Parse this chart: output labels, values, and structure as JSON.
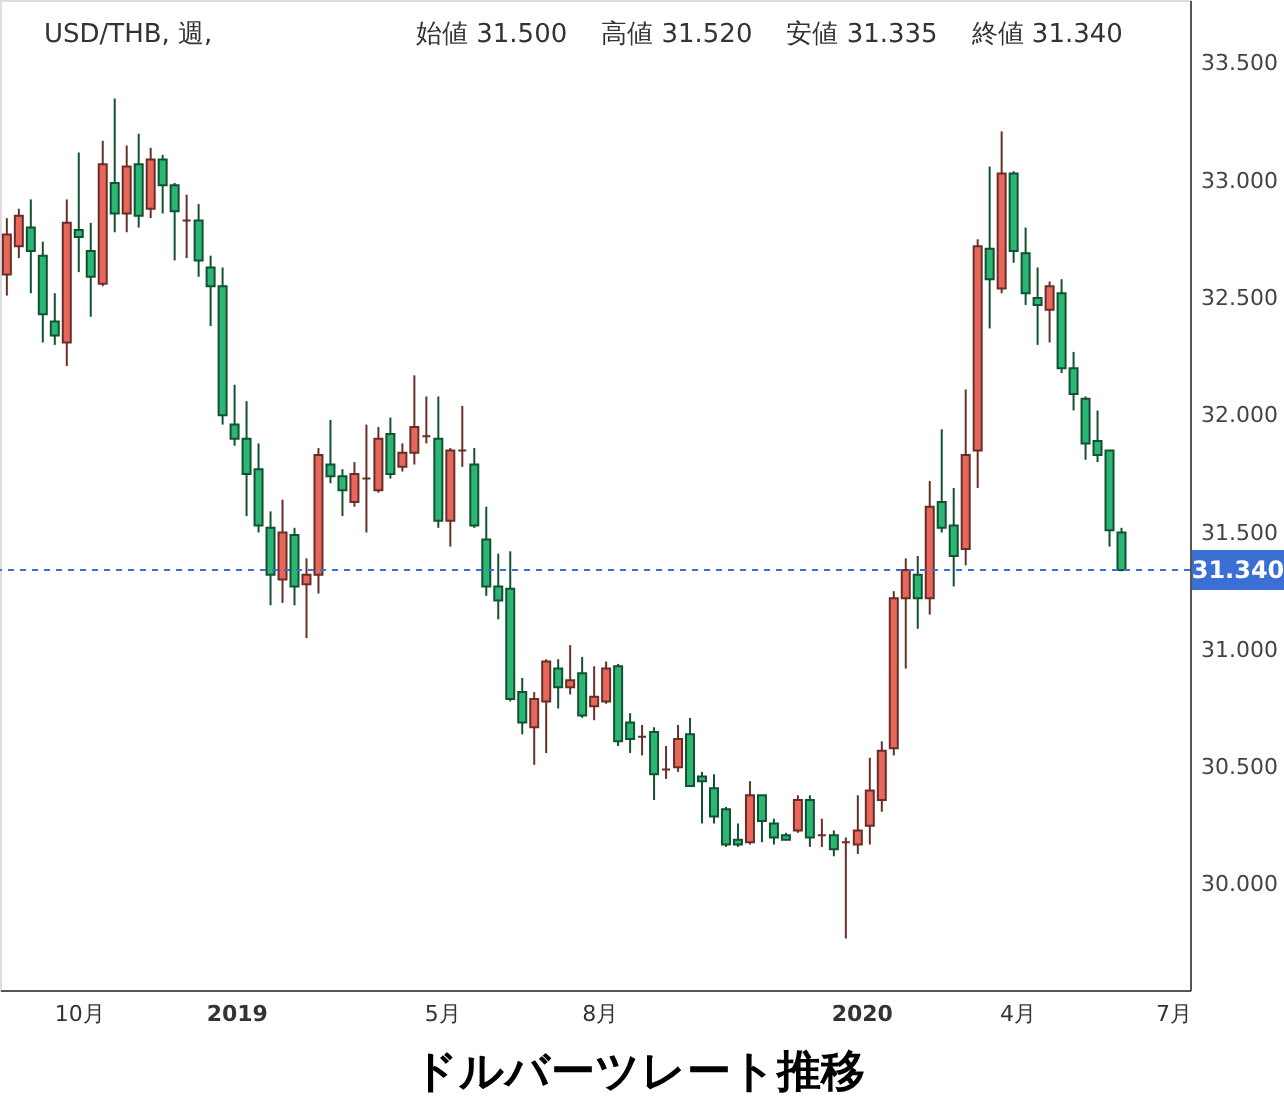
{
  "chart_data": {
    "type": "candlestick",
    "title": "ドルバーツレート推移",
    "annotations": [
      "USD/THB, 週,",
      "始値 31.500",
      "高値 31.520",
      "安値 31.335",
      "終値 31.340"
    ],
    "x": [
      "2018-08-20",
      "2018-08-27",
      "2018-09-03",
      "2018-09-10",
      "2018-09-17",
      "2018-09-24",
      "2018-10-01",
      "2018-10-08",
      "2018-10-15",
      "2018-10-22",
      "2018-10-29",
      "2018-11-05",
      "2018-11-12",
      "2018-11-19",
      "2018-11-26",
      "2018-12-03",
      "2018-12-10",
      "2018-12-17",
      "2018-12-24",
      "2018-12-31",
      "2019-01-07",
      "2019-01-14",
      "2019-01-21",
      "2019-01-28",
      "2019-02-04",
      "2019-02-11",
      "2019-02-18",
      "2019-02-25",
      "2019-03-04",
      "2019-03-11",
      "2019-03-18",
      "2019-03-25",
      "2019-04-01",
      "2019-04-08",
      "2019-04-15",
      "2019-04-22",
      "2019-04-29",
      "2019-05-06",
      "2019-05-13",
      "2019-05-20",
      "2019-05-27",
      "2019-06-03",
      "2019-06-10",
      "2019-06-17",
      "2019-06-24",
      "2019-07-01",
      "2019-07-08",
      "2019-07-15",
      "2019-07-22",
      "2019-07-29",
      "2019-08-05",
      "2019-08-12",
      "2019-08-19",
      "2019-08-26",
      "2019-09-02",
      "2019-09-09",
      "2019-09-16",
      "2019-09-23",
      "2019-09-30",
      "2019-10-07",
      "2019-10-14",
      "2019-10-21",
      "2019-10-28",
      "2019-11-04",
      "2019-11-11",
      "2019-11-18",
      "2019-11-25",
      "2019-12-02",
      "2019-12-09",
      "2019-12-16",
      "2019-12-23",
      "2019-12-30",
      "2020-01-06",
      "2020-01-13",
      "2020-01-20",
      "2020-01-27",
      "2020-02-03",
      "2020-02-10",
      "2020-02-17",
      "2020-02-24",
      "2020-03-02",
      "2020-03-09",
      "2020-03-16",
      "2020-03-23",
      "2020-03-30",
      "2020-04-06",
      "2020-04-13",
      "2020-04-20",
      "2020-04-27",
      "2020-05-04",
      "2020-05-11",
      "2020-05-18",
      "2020-05-25",
      "2020-06-01"
    ],
    "ohlc": [
      [
        32.6,
        32.84,
        32.51,
        32.77
      ],
      [
        32.72,
        32.88,
        32.67,
        32.85
      ],
      [
        32.8,
        32.92,
        32.52,
        32.7
      ],
      [
        32.68,
        32.74,
        32.31,
        32.43
      ],
      [
        32.4,
        32.52,
        32.3,
        32.34
      ],
      [
        32.31,
        32.92,
        32.21,
        32.82
      ],
      [
        32.79,
        33.12,
        32.61,
        32.76
      ],
      [
        32.7,
        32.82,
        32.42,
        32.59
      ],
      [
        32.56,
        33.17,
        32.55,
        33.07
      ],
      [
        32.99,
        33.35,
        32.78,
        32.86
      ],
      [
        32.86,
        33.15,
        32.78,
        33.06
      ],
      [
        33.07,
        33.2,
        32.8,
        32.85
      ],
      [
        32.88,
        33.14,
        32.84,
        33.09
      ],
      [
        33.09,
        33.11,
        32.86,
        32.98
      ],
      [
        32.98,
        32.99,
        32.66,
        32.87
      ],
      [
        32.83,
        32.94,
        32.67,
        32.83
      ],
      [
        32.83,
        32.9,
        32.59,
        32.66
      ],
      [
        32.63,
        32.68,
        32.38,
        32.55
      ],
      [
        32.55,
        32.63,
        31.96,
        32.0
      ],
      [
        31.96,
        32.13,
        31.87,
        31.9
      ],
      [
        31.9,
        32.06,
        31.57,
        31.75
      ],
      [
        31.77,
        31.88,
        31.5,
        31.53
      ],
      [
        31.52,
        31.59,
        31.19,
        31.32
      ],
      [
        31.3,
        31.64,
        31.2,
        31.5
      ],
      [
        31.49,
        31.52,
        31.19,
        31.27
      ],
      [
        31.28,
        31.39,
        31.05,
        31.32
      ],
      [
        31.32,
        31.86,
        31.24,
        31.83
      ],
      [
        31.79,
        31.98,
        31.71,
        31.74
      ],
      [
        31.74,
        31.77,
        31.57,
        31.68
      ],
      [
        31.63,
        31.8,
        31.61,
        31.75
      ],
      [
        31.73,
        31.96,
        31.5,
        31.73
      ],
      [
        31.68,
        31.95,
        31.67,
        31.9
      ],
      [
        31.92,
        31.99,
        31.73,
        31.75
      ],
      [
        31.78,
        31.88,
        31.76,
        31.84
      ],
      [
        31.84,
        32.17,
        31.79,
        31.95
      ],
      [
        31.91,
        32.08,
        31.88,
        31.91
      ],
      [
        31.9,
        32.08,
        31.52,
        31.55
      ],
      [
        31.55,
        31.86,
        31.44,
        31.85
      ],
      [
        31.85,
        32.04,
        31.78,
        31.85
      ],
      [
        31.79,
        31.86,
        31.52,
        31.53
      ],
      [
        31.47,
        31.61,
        31.23,
        31.27
      ],
      [
        31.27,
        31.41,
        31.13,
        31.21
      ],
      [
        31.26,
        31.42,
        30.78,
        30.79
      ],
      [
        30.82,
        30.88,
        30.64,
        30.69
      ],
      [
        30.67,
        30.82,
        30.51,
        30.79
      ],
      [
        30.78,
        30.96,
        30.56,
        30.95
      ],
      [
        30.92,
        30.96,
        30.75,
        30.84
      ],
      [
        30.84,
        31.02,
        30.81,
        30.87
      ],
      [
        30.9,
        30.97,
        30.71,
        30.72
      ],
      [
        30.76,
        30.93,
        30.7,
        30.8
      ],
      [
        30.78,
        30.95,
        30.77,
        30.92
      ],
      [
        30.93,
        30.94,
        30.59,
        30.61
      ],
      [
        30.69,
        30.73,
        30.56,
        30.62
      ],
      [
        30.63,
        30.68,
        30.55,
        30.63
      ],
      [
        30.65,
        30.67,
        30.36,
        30.47
      ],
      [
        30.49,
        30.59,
        30.45,
        30.49
      ],
      [
        30.5,
        30.68,
        30.48,
        30.62
      ],
      [
        30.64,
        30.71,
        30.42,
        30.42
      ],
      [
        30.46,
        30.48,
        30.26,
        30.44
      ],
      [
        30.41,
        30.47,
        30.26,
        30.29
      ],
      [
        30.32,
        30.33,
        30.16,
        30.17
      ],
      [
        30.19,
        30.26,
        30.16,
        30.17
      ],
      [
        30.18,
        30.44,
        30.17,
        30.38
      ],
      [
        30.38,
        30.38,
        30.18,
        30.27
      ],
      [
        30.26,
        30.28,
        30.17,
        30.2
      ],
      [
        30.21,
        30.22,
        30.19,
        30.19
      ],
      [
        30.23,
        30.38,
        30.22,
        30.36
      ],
      [
        30.36,
        30.38,
        30.16,
        30.2
      ],
      [
        30.21,
        30.28,
        30.16,
        30.21
      ],
      [
        30.21,
        30.23,
        30.12,
        30.15
      ],
      [
        30.18,
        30.2,
        29.77,
        30.18
      ],
      [
        30.17,
        30.38,
        30.13,
        30.23
      ],
      [
        30.25,
        30.54,
        30.17,
        30.4
      ],
      [
        30.36,
        30.61,
        30.31,
        30.57
      ],
      [
        30.58,
        31.25,
        30.55,
        31.22
      ],
      [
        31.22,
        31.39,
        30.92,
        31.34
      ],
      [
        31.32,
        31.4,
        31.09,
        31.22
      ],
      [
        31.22,
        31.72,
        31.15,
        31.61
      ],
      [
        31.63,
        31.94,
        31.5,
        31.52
      ],
      [
        31.53,
        31.69,
        31.27,
        31.4
      ],
      [
        31.43,
        32.11,
        31.36,
        31.83
      ],
      [
        31.85,
        32.75,
        31.69,
        32.72
      ],
      [
        32.71,
        33.06,
        32.37,
        32.58
      ],
      [
        32.54,
        33.21,
        32.52,
        33.03
      ],
      [
        33.03,
        33.04,
        32.65,
        32.7
      ],
      [
        32.69,
        32.8,
        32.47,
        32.52
      ],
      [
        32.5,
        32.63,
        32.3,
        32.47
      ],
      [
        32.45,
        32.57,
        32.31,
        32.55
      ],
      [
        32.52,
        32.58,
        32.18,
        32.2
      ],
      [
        32.2,
        32.27,
        32.02,
        32.09
      ],
      [
        32.07,
        32.08,
        31.81,
        31.88
      ],
      [
        31.89,
        32.02,
        31.8,
        31.83
      ],
      [
        31.85,
        31.85,
        31.44,
        31.51
      ],
      [
        31.5,
        31.52,
        31.335,
        31.34
      ]
    ],
    "colors": [
      "#e8675a",
      "#e8675a",
      "#2bb673",
      "#2bb673",
      "#2bb673",
      "#e8675a",
      "#2bb673",
      "#2bb673",
      "#e8675a",
      "#2bb673",
      "#e8675a",
      "#2bb673",
      "#e8675a",
      "#2bb673",
      "#2bb673",
      "#682e28",
      "#2bb673",
      "#2bb673",
      "#2bb673",
      "#2bb673",
      "#2bb673",
      "#2bb673",
      "#2bb673",
      "#e8675a",
      "#2bb673",
      "#e8675a",
      "#e8675a",
      "#2bb673",
      "#2bb673",
      "#e8675a",
      "#682e28",
      "#e8675a",
      "#2bb673",
      "#e8675a",
      "#e8675a",
      "#682e28",
      "#2bb673",
      "#e8675a",
      "#682e28",
      "#2bb673",
      "#2bb673",
      "#2bb673",
      "#2bb673",
      "#2bb673",
      "#e8675a",
      "#e8675a",
      "#2bb673",
      "#e8675a",
      "#2bb673",
      "#e8675a",
      "#e8675a",
      "#2bb673",
      "#2bb673",
      "#682e28",
      "#2bb673",
      "#682e28",
      "#e8675a",
      "#2bb673",
      "#2bb673",
      "#2bb673",
      "#2bb673",
      "#2bb673",
      "#e8675a",
      "#2bb673",
      "#2bb673",
      "#2bb673",
      "#e8675a",
      "#2bb673",
      "#682e28",
      "#2bb673",
      "#682e28",
      "#e8675a",
      "#e8675a",
      "#e8675a",
      "#e8675a",
      "#e8675a",
      "#2bb673",
      "#e8675a",
      "#2bb673",
      "#2bb673",
      "#e8675a",
      "#e8675a",
      "#2bb673",
      "#e8675a",
      "#2bb673",
      "#2bb673",
      "#2bb673",
      "#e8675a",
      "#2bb673",
      "#2bb673",
      "#2bb673",
      "#2bb673",
      "#2bb673",
      "#2bb673"
    ],
    "xlim": [
      "2018-08-16",
      "2020-07-11"
    ],
    "xticks": [
      {
        "value": "2018-10-01",
        "label": "10月"
      },
      {
        "value": "2019-01-01",
        "label": "2019"
      },
      {
        "value": "2019-05-01",
        "label": "5月"
      },
      {
        "value": "2019-08-01",
        "label": "8月"
      },
      {
        "value": "2020-01-01",
        "label": "2020"
      },
      {
        "value": "2020-04-01",
        "label": "4月"
      },
      {
        "value": "2020-07-01",
        "label": "7月"
      }
    ],
    "ylim": [
      29.55,
      33.77
    ],
    "yticks": [
      {
        "value": 30,
        "label": "30.000"
      },
      {
        "value": 30.5,
        "label": "30.500"
      },
      {
        "value": 31,
        "label": "31.000"
      },
      {
        "value": 31.5,
        "label": "31.500"
      },
      {
        "value": 32,
        "label": "32.000"
      },
      {
        "value": 32.5,
        "label": "32.500"
      },
      {
        "value": 33,
        "label": "33.000"
      },
      {
        "value": 33.5,
        "label": "33.500"
      }
    ],
    "ref_lines": [
      {
        "axis": "y",
        "value": 31.34,
        "label": "31.340",
        "color": "#3b6fd4",
        "line_style": "dashed"
      }
    ]
  }
}
